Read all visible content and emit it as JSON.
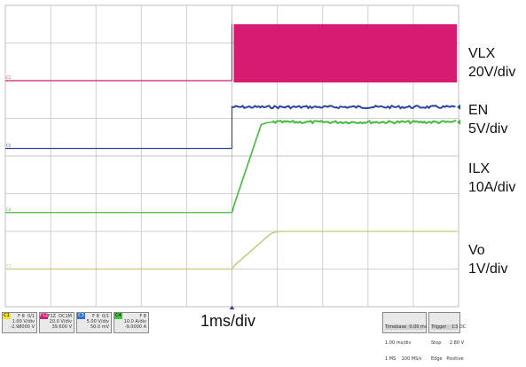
{
  "chart_data": {
    "type": "line",
    "title": "",
    "xlabel": "1ms/div",
    "ylabel": "",
    "x_divisions": 10,
    "y_divisions": 8,
    "x_unit": "ms",
    "x_per_div": 1,
    "trigger_div": 5,
    "grid": true,
    "series": [
      {
        "name": "VLX",
        "scale_label": "20V/div",
        "color": "#d81b72",
        "ref_marker": "C1",
        "baseline_div": 6.0,
        "kind": "switching",
        "on_div": 5.0,
        "high_div": 7.5
      },
      {
        "name": "EN",
        "scale_label": "5V/div",
        "color": "#2b45a0",
        "ref_marker": "C2",
        "baseline_div": 4.2,
        "kind": "step",
        "on_div": 5.0,
        "high_div": 5.3
      },
      {
        "name": "ILX",
        "scale_label": "10A/div",
        "color": "#44bb3a",
        "ref_marker": "C4",
        "baseline_div": 2.5,
        "kind": "ramp",
        "on_div": 5.0,
        "ramp_end_div": 5.8,
        "high_div": 4.9
      },
      {
        "name": "Vo",
        "scale_label": "1V/div",
        "color": "#c8c87a",
        "ref_marker": "C3",
        "baseline_div": 1.0,
        "kind": "ramp",
        "on_div": 5.0,
        "ramp_end_div": 6.0,
        "high_div": 2.0
      }
    ]
  },
  "labels": {
    "vlx_name": "VLX",
    "vlx_scale": "20V/div",
    "en_name": "EN",
    "en_scale": "5V/div",
    "ilx_name": "ILX",
    "ilx_scale": "10A/div",
    "vo_name": "Vo",
    "vo_scale": "1V/div",
    "timebase": "1ms/div"
  },
  "status": {
    "channels": [
      {
        "tag": "C1",
        "line1": "F 8  0/1",
        "line2": "1.00 V/div",
        "line3": "-2.98000 V",
        "color": "#f5e21a"
      },
      {
        "tag": "F1Z",
        "line1": "F1Z  DC1M",
        "line2": "20.0 V/div",
        "line3": "39.600 V",
        "color": "#d81b72"
      },
      {
        "tag": "C3",
        "line1": "F 8  0/1",
        "line2": "5.00 V/div",
        "line3": "50.0 mV",
        "color": "#2b6fd8"
      },
      {
        "tag": "C4",
        "line1": "F 8",
        "line2": "10.0 A/div",
        "line3": "-9.0000 A",
        "color": "#3cc43c"
      }
    ],
    "timebase": {
      "hdr": "Timebase  0.00 ms",
      "line1": "1.00 ms/div",
      "line2": "1 MS    100 MS/s"
    },
    "trigger": {
      "hdr": "Trigger    C3 DC",
      "line1": "Stop      2.80 V",
      "line2": "Edge   Positive"
    }
  }
}
